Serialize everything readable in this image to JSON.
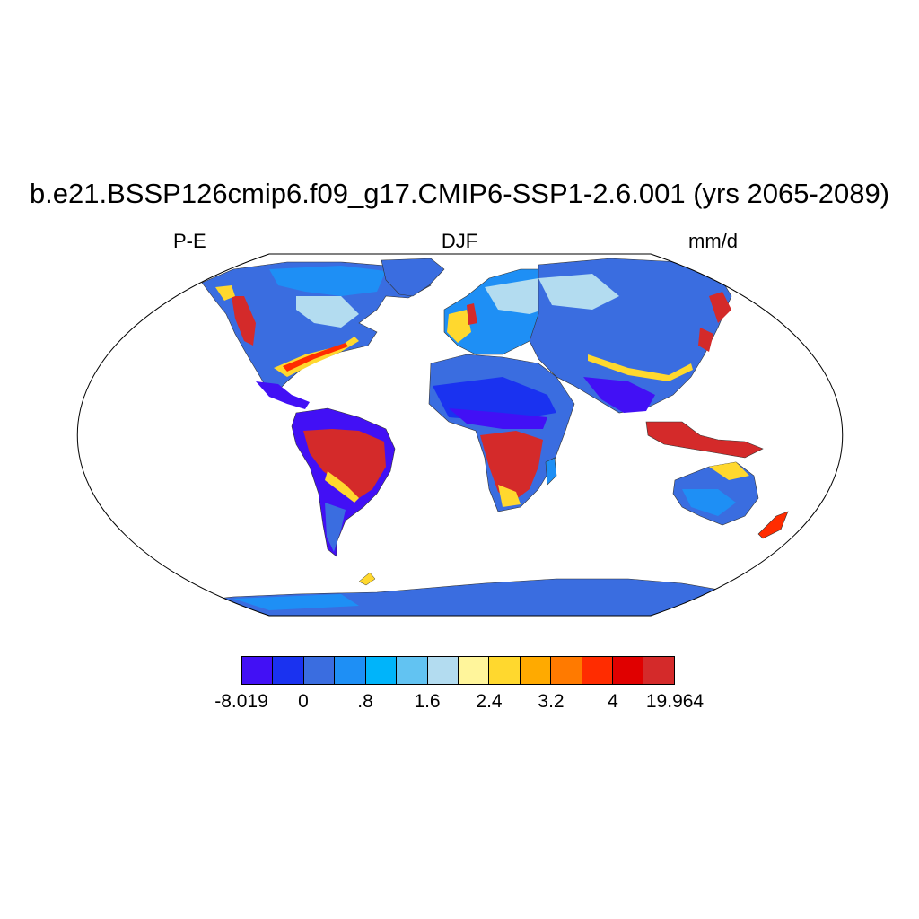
{
  "title": "b.e21.BSSP126cmip6.f09_g17.CMIP6-SSP1-2.6.001 (yrs 2065-2089)",
  "left_label": "P-E",
  "center_label": "DJF",
  "right_label": "mm/d",
  "colorbar": {
    "colors": [
      "#4210f5",
      "#1a32f0",
      "#3a6de0",
      "#1e8ff5",
      "#00b4fa",
      "#62c3f2",
      "#b3dcf0",
      "#fff59b",
      "#ffd82e",
      "#ffaa00",
      "#ff7a00",
      "#ff2c00",
      "#e00000",
      "#d42a2a"
    ],
    "labels": [
      "-8.019",
      "0",
      ".8",
      "1.6",
      "2.4",
      "3.2",
      "4",
      "19.964"
    ]
  }
}
